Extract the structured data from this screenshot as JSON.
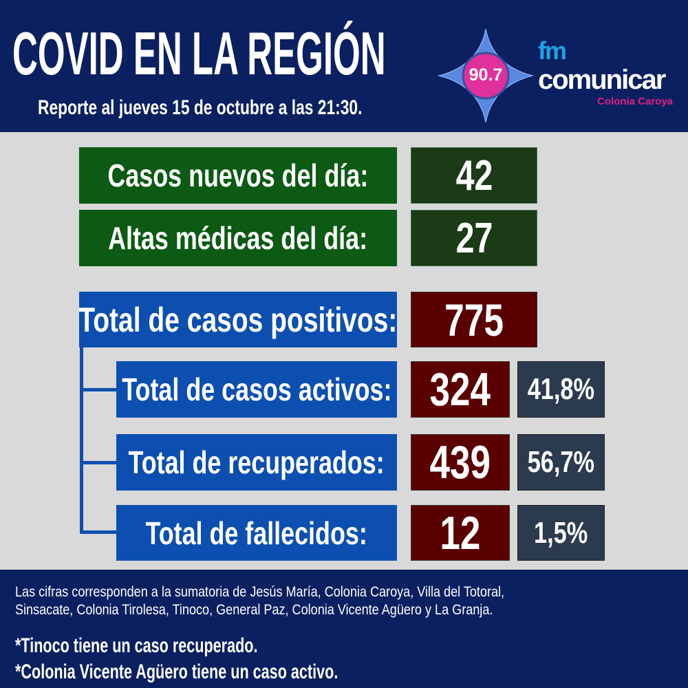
{
  "header": {
    "title": "COVID EN LA REGIÓN",
    "subtitle": "Reporte al jueves 15 de octubre a las 21:30.",
    "logo": {
      "frequency": "90.7",
      "fm": "fm",
      "brand": "comunicar",
      "location": "Colonia Caroya",
      "colors": {
        "circle": "#e0309c",
        "star": "#5a88e0",
        "fm": "#1fa3e0",
        "location": "#e0207f"
      }
    }
  },
  "daily": [
    {
      "label": "Casos nuevos del día:",
      "value": "42"
    },
    {
      "label": "Altas médicas del día:",
      "value": "27"
    }
  ],
  "total": {
    "label": "Total de casos positivos:",
    "value": "775"
  },
  "breakdown": [
    {
      "label": "Total de casos activos:",
      "value": "324",
      "percent": "41,8%"
    },
    {
      "label": "Total de recuperados:",
      "value": "439",
      "percent": "56,7%"
    },
    {
      "label": "Total de fallecidos:",
      "value": "12",
      "percent": "1,5%"
    }
  ],
  "footer": {
    "note_line1": "Las cifras corresponden a la sumatoria de Jesús María, Colonia Caroya, Villa del Totoral,",
    "note_line2": "Sinsacate, Colonia Tirolesa, Tinoco, General Paz, Colonia Vicente Agüero  y La Granja.",
    "remarks": [
      "*Tinoco tiene un caso recuperado.",
      "*Colonia Vicente Agüero tiene un caso activo."
    ]
  },
  "colors": {
    "navy": "#0b2060",
    "green": "#0c5a13",
    "blue": "#0d4fb0",
    "maroon": "#5a0000",
    "slate": "#2c3a4f"
  }
}
